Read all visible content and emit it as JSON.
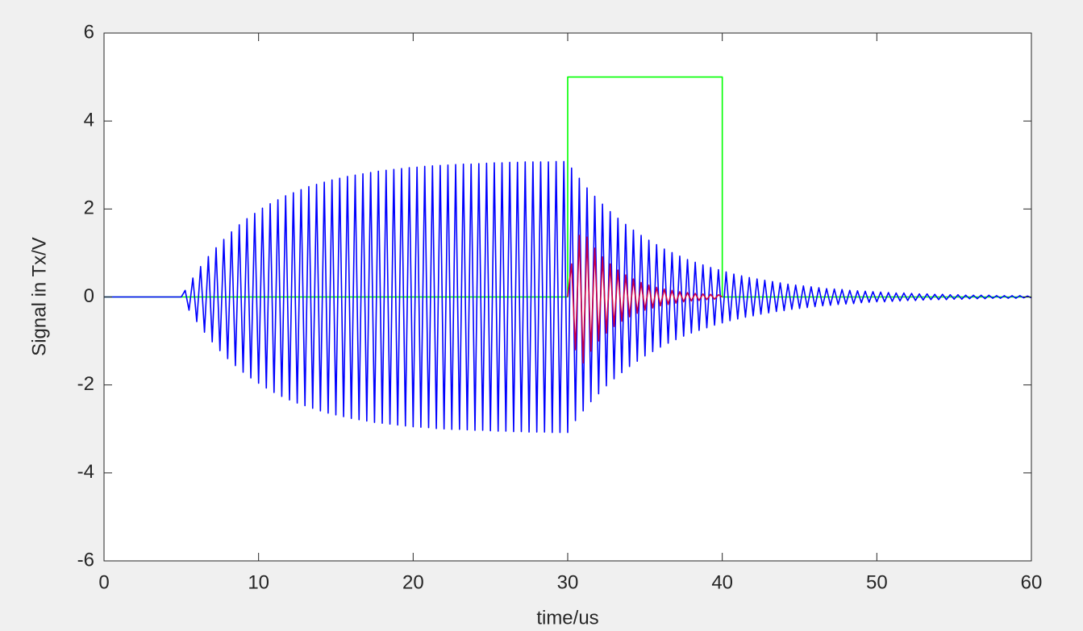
{
  "chart_data": {
    "type": "line",
    "xlabel": "time/us",
    "ylabel": "Signal in Tx/V",
    "xlim": [
      0,
      60
    ],
    "ylim": [
      -6,
      6
    ],
    "xticks": [
      0,
      10,
      20,
      30,
      40,
      50,
      60
    ],
    "yticks": [
      -6,
      -4,
      -2,
      0,
      2,
      4,
      6
    ],
    "grid": false,
    "series": [
      {
        "color": "#00ff00",
        "x": [
          0,
          30,
          30,
          40,
          40,
          60
        ],
        "values": [
          0,
          0,
          5,
          5,
          0,
          0
        ]
      },
      {
        "color": "#0000ff",
        "x": [
          0,
          5,
          5.25,
          5.5,
          5.75,
          6,
          6.25,
          6.5,
          6.75,
          7,
          7.25,
          7.5,
          7.75,
          8,
          8.25,
          8.5,
          8.75,
          9,
          9.25,
          9.5,
          9.75,
          10,
          10.25,
          10.5,
          10.75,
          11,
          11.25,
          11.5,
          11.75,
          12,
          12.25,
          12.5,
          12.75,
          13,
          13.25,
          13.5,
          13.75,
          14,
          14.25,
          14.5,
          14.75,
          15,
          15.25,
          15.5,
          15.75,
          16,
          16.25,
          16.5,
          16.75,
          17,
          17.25,
          17.5,
          17.75,
          18,
          18.25,
          18.5,
          18.75,
          19,
          19.25,
          19.5,
          19.75,
          20,
          20.25,
          20.5,
          20.75,
          21,
          21.25,
          21.5,
          21.75,
          22,
          22.25,
          22.5,
          22.75,
          23,
          23.25,
          23.5,
          23.75,
          24,
          24.25,
          24.5,
          24.75,
          25,
          25.25,
          25.5,
          25.75,
          26,
          26.25,
          26.5,
          26.75,
          27,
          27.25,
          27.5,
          27.75,
          28,
          28.25,
          28.5,
          28.75,
          29,
          29.25,
          29.5,
          29.75,
          30,
          30.25,
          30.5,
          30.75,
          31,
          31.25,
          31.5,
          31.75,
          32,
          32.25,
          32.5,
          32.75,
          33,
          33.25,
          33.5,
          33.75,
          34,
          34.25,
          34.5,
          34.75,
          35,
          35.25,
          35.5,
          35.75,
          36,
          36.25,
          36.5,
          36.75,
          37,
          37.25,
          37.5,
          37.75,
          38,
          38.25,
          38.5,
          38.75,
          39,
          39.25,
          39.5,
          39.75,
          40,
          40.25,
          40.5,
          40.75,
          41,
          41.25,
          41.5,
          41.75,
          42,
          42.25,
          42.5,
          42.75,
          43,
          43.25,
          43.5,
          43.75,
          44,
          44.25,
          44.5,
          44.75,
          45,
          45.25,
          45.5,
          45.75,
          46,
          46.25,
          46.5,
          46.75,
          47,
          47.25,
          47.5,
          47.75,
          48,
          48.25,
          48.5,
          48.75,
          49,
          49.25,
          49.5,
          49.75,
          50,
          50.25,
          50.5,
          50.75,
          51,
          51.25,
          51.5,
          51.75,
          52,
          52.25,
          52.5,
          52.75,
          53,
          53.25,
          53.5,
          53.75,
          54,
          54.25,
          54.5,
          54.75,
          55,
          55.25,
          55.5,
          55.75,
          56,
          56.25,
          56.5,
          56.75,
          57,
          57.25,
          57.5,
          57.75,
          58,
          58.25,
          58.5,
          58.75,
          59,
          59.25,
          59.5,
          59.75,
          60
        ],
        "values": [
          0,
          0,
          0.15,
          -0.3,
          0.43,
          -0.56,
          0.69,
          -0.8,
          0.92,
          -1.02,
          1.12,
          -1.22,
          1.31,
          -1.4,
          1.48,
          -1.56,
          1.64,
          -1.71,
          1.78,
          -1.84,
          1.9,
          -1.96,
          2.02,
          -2.07,
          2.12,
          -2.17,
          2.21,
          -2.26,
          2.3,
          -2.34,
          2.37,
          -2.41,
          2.44,
          -2.47,
          2.51,
          -2.53,
          2.56,
          -2.59,
          2.61,
          -2.64,
          2.66,
          -2.68,
          2.7,
          -2.72,
          2.74,
          -2.76,
          2.77,
          -2.79,
          2.8,
          -2.82,
          2.83,
          -2.85,
          2.86,
          -2.87,
          2.88,
          -2.89,
          2.9,
          -2.91,
          2.92,
          -2.93,
          2.94,
          -2.95,
          2.95,
          -2.96,
          2.97,
          -2.97,
          2.98,
          -2.99,
          2.99,
          -3.0,
          3.0,
          -3.01,
          3.01,
          -3.01,
          3.02,
          -3.02,
          3.02,
          -3.03,
          3.03,
          -3.03,
          3.04,
          -3.04,
          3.05,
          -3.05,
          3.05,
          -3.05,
          3.06,
          -3.06,
          3.06,
          -3.06,
          3.07,
          -3.07,
          3.07,
          -3.07,
          3.07,
          -3.07,
          3.07,
          -3.08,
          3.08,
          -3.08,
          3.08,
          -3.08,
          2.93,
          -2.81,
          2.7,
          -2.59,
          2.48,
          -2.38,
          2.29,
          -2.2,
          2.11,
          -2.02,
          1.94,
          -1.86,
          1.79,
          -1.72,
          1.65,
          -1.58,
          1.52,
          -1.46,
          1.4,
          -1.34,
          1.29,
          -1.24,
          1.19,
          -1.14,
          1.09,
          -1.05,
          1.01,
          -0.97,
          0.93,
          -0.89,
          0.85,
          -0.82,
          0.79,
          -0.76,
          0.73,
          -0.7,
          0.67,
          -0.64,
          0.62,
          -0.59,
          0.57,
          -0.54,
          0.52,
          -0.5,
          0.48,
          -0.46,
          0.44,
          -0.43,
          0.41,
          -0.39,
          0.38,
          -0.36,
          0.35,
          -0.33,
          0.32,
          -0.31,
          0.29,
          -0.28,
          0.27,
          -0.26,
          0.25,
          -0.24,
          0.23,
          -0.22,
          0.21,
          -0.2,
          0.19,
          -0.19,
          0.18,
          -0.17,
          0.17,
          -0.16,
          0.15,
          -0.15,
          0.14,
          -0.13,
          0.13,
          -0.12,
          0.12,
          -0.11,
          0.11,
          -0.11,
          0.1,
          -0.1,
          0.09,
          -0.09,
          0.09,
          -0.08,
          0.08,
          -0.08,
          0.07,
          -0.07,
          0.07,
          -0.06,
          0.06,
          -0.06,
          0.06,
          -0.06,
          0.05,
          -0.05,
          0.05,
          -0.05,
          0.04,
          -0.04,
          0.04,
          -0.04,
          0.04,
          -0.04,
          0.04,
          -0.03,
          0.03,
          -0.03,
          0.03,
          -0.03,
          0.03,
          -0.03,
          0.03,
          -0.02,
          0.02,
          -0.02
        ]
      },
      {
        "color": "#cc0044",
        "x": [
          30,
          30.25,
          30.5,
          30.75,
          31,
          31.25,
          31.5,
          31.75,
          32,
          32.25,
          32.5,
          32.75,
          33,
          33.25,
          33.5,
          33.75,
          34,
          34.25,
          34.5,
          34.75,
          35,
          35.25,
          35.5,
          35.75,
          36,
          36.25,
          36.5,
          36.75,
          37,
          37.25,
          37.5,
          37.75,
          38,
          38.25,
          38.5,
          38.75,
          39,
          39.25,
          39.5,
          39.75,
          40
        ],
        "values": [
          0,
          0.75,
          -1.2,
          1.4,
          -1.5,
          1.36,
          -1.23,
          1.11,
          -1.0,
          0.91,
          -0.82,
          0.75,
          -0.67,
          0.61,
          -0.55,
          0.5,
          -0.45,
          0.41,
          -0.37,
          0.33,
          -0.3,
          0.27,
          -0.25,
          0.22,
          -0.2,
          0.18,
          -0.17,
          0.15,
          -0.14,
          0.12,
          -0.11,
          0.1,
          -0.09,
          0.08,
          -0.08,
          0.07,
          -0.06,
          0.06,
          -0.05,
          0.05,
          0
        ]
      }
    ]
  }
}
